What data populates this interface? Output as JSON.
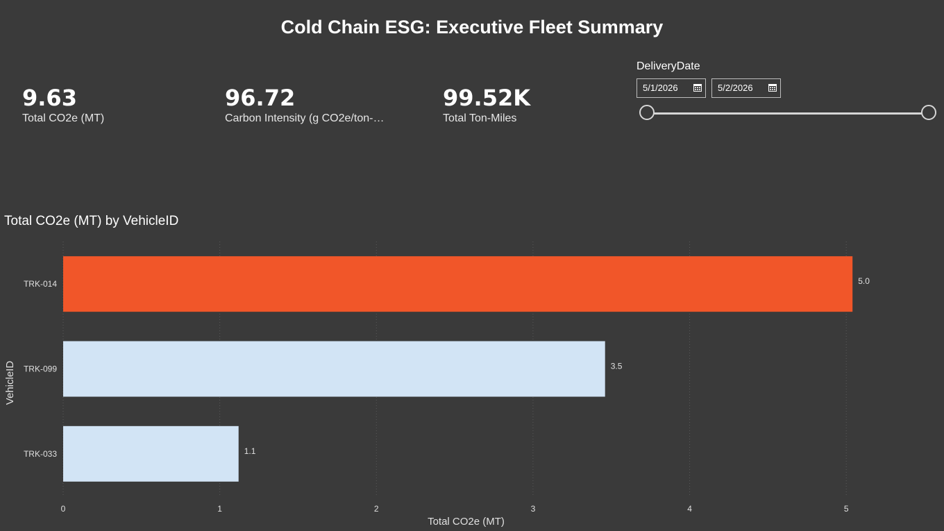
{
  "header": {
    "title": "Cold Chain ESG: Executive Fleet Summary"
  },
  "kpis": [
    {
      "value": "9.63",
      "label": "Total CO2e (MT)"
    },
    {
      "value": "96.72",
      "label": "Carbon Intensity (g CO2e/ton-mile)"
    },
    {
      "value": "99.52K",
      "label": "Total Ton-Miles"
    }
  ],
  "slicer": {
    "title": "DeliveryDate",
    "start_date": "5/1/2026",
    "end_date": "5/2/2026",
    "icon": "calendar-icon"
  },
  "colors": {
    "background": "#3a3a3a",
    "highlight_bar": "#f15629",
    "default_bar": "#d2e4f5",
    "text": "#ffffff",
    "axis_text": "#e0e0e0",
    "grid": "#5a5a5a"
  },
  "chart_data": {
    "type": "bar",
    "orientation": "horizontal",
    "title": "Total CO2e (MT) by VehicleID",
    "xlabel": "Total CO2e (MT)",
    "ylabel": "VehicleID",
    "categories": [
      "TRK-014",
      "TRK-099",
      "TRK-033"
    ],
    "values": [
      5.04,
      3.46,
      1.12
    ],
    "data_labels": [
      "5.0",
      "3.5",
      "1.1"
    ],
    "highlighted": [
      true,
      false,
      false
    ],
    "xlim": [
      0,
      5.5
    ],
    "xticks": [
      "0",
      "1",
      "2",
      "3",
      "4",
      "5"
    ],
    "grid": "vertical dotted"
  }
}
